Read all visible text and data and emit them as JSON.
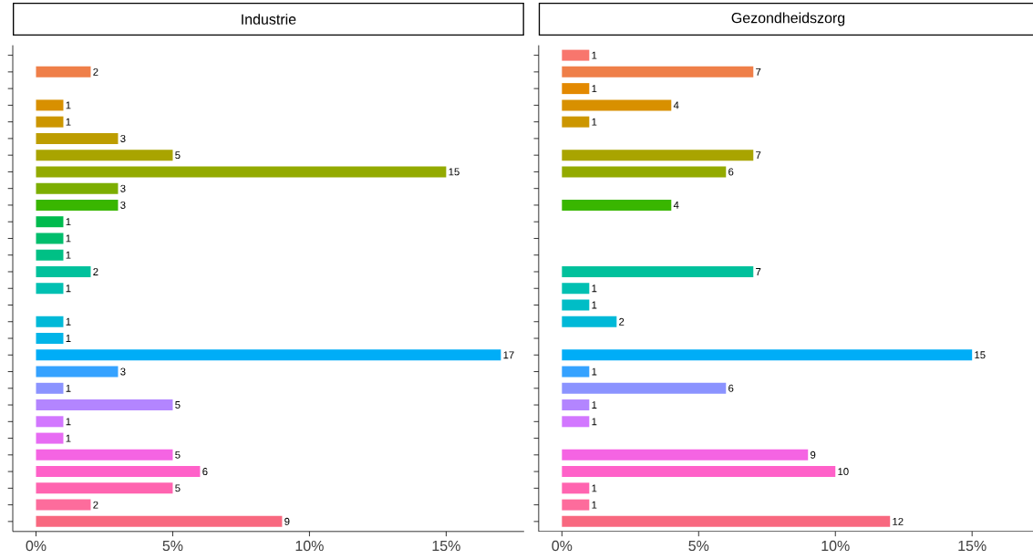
{
  "chart_data": [
    {
      "type": "bar",
      "orientation": "horizontal",
      "title": "Industrie",
      "tick_labels": "x",
      "data_labels": true,
      "categories": [
        null,
        null,
        null,
        null,
        null,
        null,
        null,
        null,
        null,
        null,
        null,
        null,
        null,
        null,
        null,
        null,
        null,
        null,
        null,
        null,
        null,
        null,
        null,
        null,
        null,
        null,
        null,
        null,
        null
      ],
      "values": [
        null,
        2,
        null,
        1,
        1,
        3,
        5,
        15,
        3,
        3,
        1,
        1,
        1,
        2,
        1,
        null,
        1,
        1,
        17,
        3,
        1,
        5,
        1,
        1,
        5,
        6,
        5,
        2,
        9
      ],
      "colors": [
        "#F8766D",
        "#EF7F49",
        "#E38900",
        "#D89000",
        "#CC9600",
        "#BD9D00",
        "#A9A400",
        "#93AA00",
        "#7CAE00",
        "#39B600",
        "#00BB4E",
        "#00BE6C",
        "#00C085",
        "#00C19C",
        "#00C0B2",
        "#00BDC6",
        "#00B9D8",
        "#00B4E8",
        "#00ADF7",
        "#35A2FF",
        "#8B93FF",
        "#B385FF",
        "#D277FF",
        "#E76BF3",
        "#F564E3",
        "#FF61C9",
        "#FF64B0",
        "#FD6C9C",
        "#F8687F"
      ],
      "xlim": [
        -0.85,
        17.85
      ],
      "xticks": [
        {
          "value": 0,
          "label": "0%"
        },
        {
          "value": 5,
          "label": "5%"
        },
        {
          "value": 10,
          "label": "10%"
        },
        {
          "value": 15,
          "label": "15%"
        }
      ]
    },
    {
      "type": "bar",
      "orientation": "horizontal",
      "title": "Gezondheidszorg",
      "tick_labels": "x",
      "data_labels": true,
      "categories": [
        null,
        null,
        null,
        null,
        null,
        null,
        null,
        null,
        null,
        null,
        null,
        null,
        null,
        null,
        null,
        null,
        null,
        null,
        null,
        null,
        null,
        null,
        null,
        null,
        null,
        null,
        null,
        null,
        null
      ],
      "values": [
        1,
        7,
        1,
        4,
        1,
        null,
        7,
        6,
        null,
        4,
        null,
        null,
        null,
        7,
        1,
        1,
        2,
        null,
        15,
        1,
        6,
        1,
        1,
        null,
        9,
        10,
        1,
        1,
        12
      ],
      "colors": [
        "#F8766D",
        "#EF7F49",
        "#E38900",
        "#D89000",
        "#CC9600",
        "#BD9D00",
        "#A9A400",
        "#93AA00",
        "#7CAE00",
        "#39B600",
        "#00BB4E",
        "#00BE6C",
        "#00C085",
        "#00C19C",
        "#00C0B2",
        "#00BDC6",
        "#00B9D8",
        "#00B4E8",
        "#00ADF7",
        "#35A2FF",
        "#8B93FF",
        "#B385FF",
        "#D277FF",
        "#E76BF3",
        "#F564E3",
        "#FF61C9",
        "#FF64B0",
        "#FD6C9C",
        "#F8687F"
      ],
      "xlim": [
        -0.85,
        17.4
      ],
      "xticks": [
        {
          "value": 0,
          "label": "0%"
        },
        {
          "value": 5,
          "label": "5%"
        },
        {
          "value": 10,
          "label": "10%"
        },
        {
          "value": 15,
          "label": "15%"
        }
      ]
    }
  ]
}
